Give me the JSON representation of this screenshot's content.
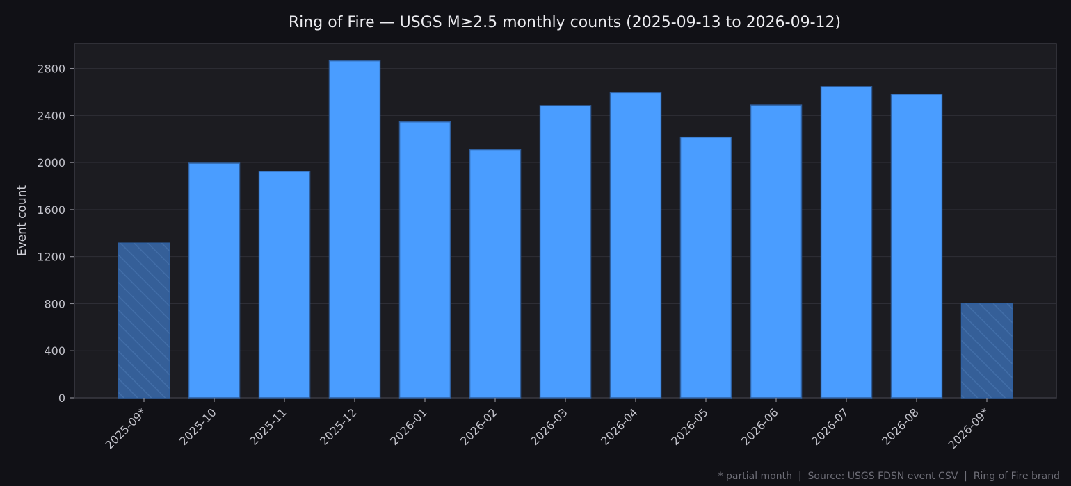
{
  "chart_data": {
    "type": "bar",
    "title": "Ring of Fire — USGS M≥2.5 monthly counts (2025-09-13 to 2026-09-12)",
    "xlabel": "",
    "ylabel": "Event count",
    "ylim": [
      0,
      3010
    ],
    "yticks": [
      0,
      400,
      800,
      1200,
      1600,
      2000,
      2400,
      2800
    ],
    "grid": true,
    "categories": [
      "2025-09*",
      "2025-10",
      "2025-11",
      "2025-12",
      "2026-01",
      "2026-02",
      "2026-03",
      "2026-04",
      "2026-05",
      "2026-06",
      "2026-07",
      "2026-08",
      "2026-09*"
    ],
    "values": [
      1315,
      1995,
      1925,
      2865,
      2345,
      2110,
      2485,
      2595,
      2215,
      2490,
      2645,
      2580,
      800
    ],
    "partial": [
      true,
      false,
      false,
      false,
      false,
      false,
      false,
      false,
      false,
      false,
      false,
      false,
      true
    ],
    "colors": {
      "bar": "#4a9dff",
      "bar_edge": "#2f5f9e",
      "partial_bar": "#355f98",
      "partial_hatch": "#426ea8"
    },
    "footer": "* partial month  |  Source: USGS FDSN event CSV  |  Ring of Fire brand"
  }
}
